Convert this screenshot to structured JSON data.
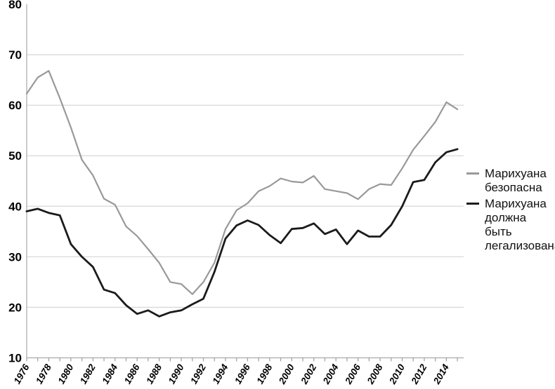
{
  "chart_data": {
    "type": "line",
    "title": "",
    "xlabel": "",
    "ylabel": "",
    "x": [
      1976,
      1977,
      1978,
      1979,
      1980,
      1981,
      1982,
      1983,
      1984,
      1985,
      1986,
      1987,
      1988,
      1989,
      1990,
      1991,
      1992,
      1993,
      1994,
      1995,
      1996,
      1997,
      1998,
      1999,
      2000,
      2001,
      2002,
      2003,
      2004,
      2005,
      2006,
      2007,
      2008,
      2009,
      2010,
      2011,
      2012,
      2013,
      2014,
      2015
    ],
    "series": [
      {
        "name": "Марихуана безопасна",
        "color": "#999999",
        "stroke_width": 2.2,
        "values": [
          62.3,
          65.5,
          66.8,
          61.4,
          55.6,
          49.2,
          46.1,
          41.5,
          40.3,
          36.0,
          34.1,
          31.5,
          28.8,
          25.0,
          24.6,
          22.6,
          25.0,
          28.8,
          35.5,
          39.2,
          40.6,
          43.0,
          44.0,
          45.5,
          44.9,
          44.7,
          46.0,
          43.4,
          43.0,
          42.6,
          41.4,
          43.4,
          44.4,
          44.2,
          47.5,
          51.2,
          53.9,
          56.7,
          60.6,
          59.2
        ]
      },
      {
        "name": "Марихуана должна быть легализована",
        "color": "#1b1b1b",
        "stroke_width": 2.8,
        "values": [
          39.0,
          39.5,
          38.7,
          38.2,
          32.5,
          30.0,
          28.0,
          23.5,
          22.8,
          20.4,
          18.7,
          19.4,
          18.2,
          19.0,
          19.4,
          20.6,
          21.7,
          27.0,
          33.6,
          36.2,
          37.2,
          36.3,
          34.3,
          32.7,
          35.5,
          35.7,
          36.6,
          34.5,
          35.4,
          32.5,
          35.2,
          34.0,
          34.0,
          36.3,
          40.0,
          44.8,
          45.2,
          48.7,
          50.7,
          51.3
        ]
      }
    ],
    "ylim": [
      10,
      80
    ],
    "yticks": [
      10,
      20,
      30,
      40,
      50,
      60,
      70,
      80
    ],
    "xtick_labels": [
      "1976",
      "1978",
      "1980",
      "1982",
      "1984",
      "1986",
      "1988",
      "1990",
      "1992",
      "1994",
      "1996",
      "1998",
      "2000",
      "2002",
      "2004",
      "2006",
      "2008",
      "2010",
      "2012",
      "2014"
    ],
    "grid": "horizontal",
    "legend_position": "right"
  },
  "legend": {
    "items": [
      {
        "label": "Марихуана безопасна",
        "color": "#999999"
      },
      {
        "label": "Марихуана должна быть легализована",
        "color": "#1b1b1b"
      }
    ]
  },
  "colors": {
    "background": "#ffffff",
    "grid": "#d9d9d9",
    "axis": "#b5b5b5",
    "tick": "#9e9e9e",
    "text": "#000000"
  }
}
